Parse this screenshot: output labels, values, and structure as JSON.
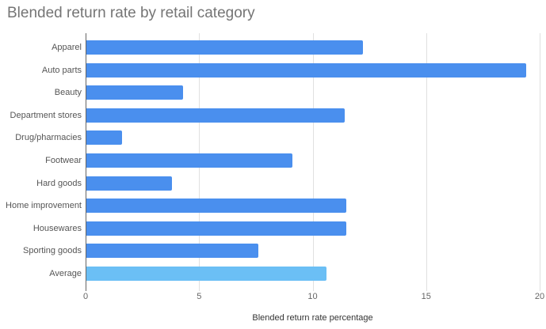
{
  "chart_data": {
    "type": "bar",
    "orientation": "horizontal",
    "title": "Blended return rate by retail category",
    "xlabel": "Blended return rate percentage",
    "ylabel": "",
    "xlim": [
      0,
      20
    ],
    "xticks": [
      "0",
      "5",
      "10",
      "15",
      "20"
    ],
    "grid": true,
    "legend": null,
    "categories": [
      "Apparel",
      "Auto parts",
      "Beauty",
      "Department stores",
      "Drug/pharmacies",
      "Footwear",
      "Hard goods",
      "Home improvement",
      "Housewares",
      "Sporting goods",
      "Average"
    ],
    "values": [
      12.2,
      19.4,
      4.3,
      11.4,
      1.6,
      9.1,
      3.8,
      11.5,
      11.5,
      7.6,
      10.6
    ],
    "colors": [
      "#4a8fee",
      "#4a8fee",
      "#4a8fee",
      "#4a8fee",
      "#4a8fee",
      "#4a8fee",
      "#4a8fee",
      "#4a8fee",
      "#4a8fee",
      "#4a8fee",
      "#6bbff5"
    ]
  }
}
